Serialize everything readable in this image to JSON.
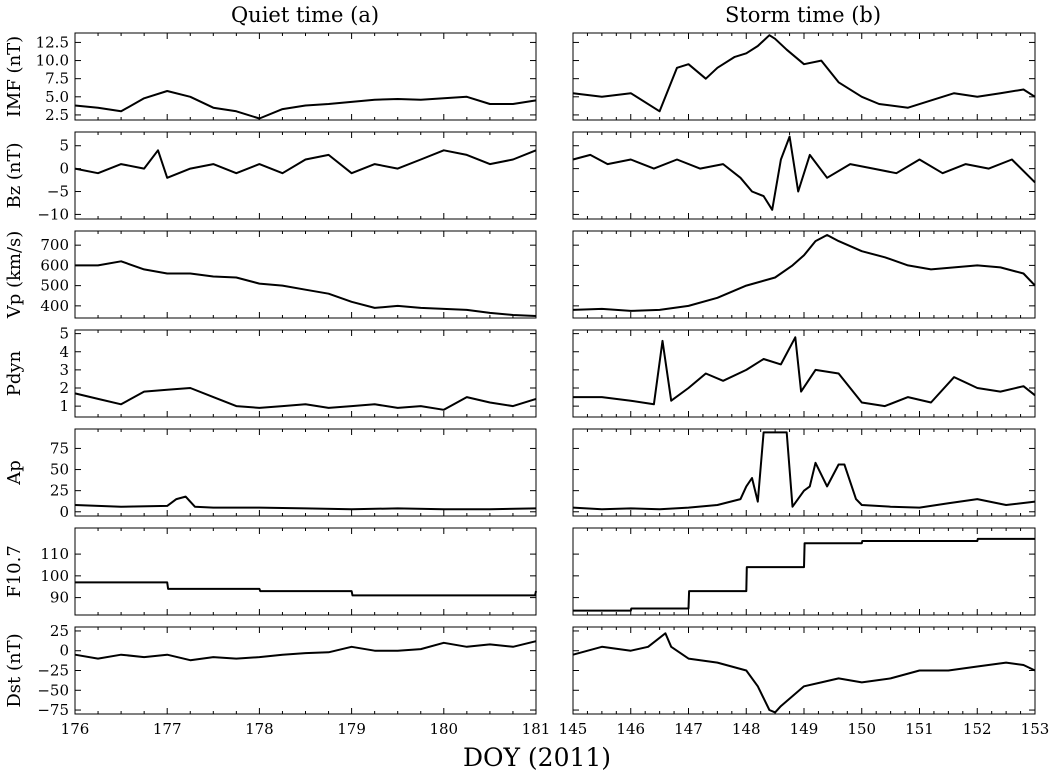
{
  "figure": {
    "xlabel": "DOY (2011)",
    "columns": [
      {
        "title": "Quiet time (a)",
        "xlim": [
          176,
          181
        ],
        "xticks": [
          176,
          177,
          178,
          179,
          180,
          181
        ]
      },
      {
        "title": "Storm time (b)",
        "xlim": [
          145,
          153
        ],
        "xticks": [
          145,
          146,
          147,
          148,
          149,
          150,
          151,
          152,
          153
        ]
      }
    ],
    "rows": [
      {
        "ylabel": "IMF (nT)",
        "ylim": [
          1.8,
          13.8
        ],
        "yticks": [
          2.5,
          5.0,
          7.5,
          10.0,
          12.5
        ],
        "ytick_labels": [
          "2.5",
          "5.0",
          "7.5",
          "10.0",
          "12.5"
        ]
      },
      {
        "ylabel": "Bz (nT)",
        "ylim": [
          -11,
          8
        ],
        "yticks": [
          -10,
          -5,
          0,
          5
        ],
        "ytick_labels": [
          "−10",
          "−5",
          "0",
          "5"
        ]
      },
      {
        "ylabel": "Vp (km/s)",
        "ylim": [
          340,
          770
        ],
        "yticks": [
          400,
          500,
          600,
          700
        ],
        "ytick_labels": [
          "400",
          "500",
          "600",
          "700"
        ]
      },
      {
        "ylabel": "Pdyn",
        "ylim": [
          0.4,
          5.2
        ],
        "yticks": [
          1,
          2,
          3,
          4,
          5
        ],
        "ytick_labels": [
          "1",
          "2",
          "3",
          "4",
          "5"
        ]
      },
      {
        "ylabel": "Ap",
        "ylim": [
          -5,
          98
        ],
        "yticks": [
          0,
          25,
          50,
          75
        ],
        "ytick_labels": [
          "0",
          "25",
          "50",
          "75"
        ]
      },
      {
        "ylabel": "F10.7",
        "ylim": [
          82,
          122
        ],
        "yticks": [
          90,
          100,
          110
        ],
        "ytick_labels": [
          "90",
          "100",
          "110"
        ]
      },
      {
        "ylabel": "Dst (nT)",
        "ylim": [
          -80,
          30
        ],
        "yticks": [
          -75,
          -50,
          -25,
          0,
          25
        ],
        "ytick_labels": [
          "−75",
          "−50",
          "−25",
          "0",
          "25"
        ]
      }
    ]
  },
  "chart_data": [
    {
      "type": "line",
      "panel": "IMF quiet",
      "ylabel": "IMF (nT)",
      "xlabel": "DOY (2011)",
      "x": [
        176.0,
        176.25,
        176.5,
        176.75,
        177.0,
        177.25,
        177.5,
        177.75,
        178.0,
        178.25,
        178.5,
        178.75,
        179.0,
        179.25,
        179.5,
        179.75,
        180.0,
        180.25,
        180.5,
        180.75,
        181.0
      ],
      "y": [
        3.8,
        3.5,
        3.0,
        4.8,
        5.8,
        5.0,
        3.5,
        3.0,
        2.0,
        3.3,
        3.8,
        4.0,
        4.3,
        4.6,
        4.7,
        4.6,
        4.8,
        5.0,
        4.0,
        4.0,
        4.5
      ]
    },
    {
      "type": "line",
      "panel": "IMF storm",
      "ylabel": "IMF (nT)",
      "xlabel": "DOY (2011)",
      "x": [
        145.0,
        145.5,
        146.0,
        146.5,
        146.6,
        146.8,
        147.0,
        147.3,
        147.5,
        147.8,
        148.0,
        148.2,
        148.4,
        148.5,
        148.7,
        149.0,
        149.3,
        149.6,
        150.0,
        150.3,
        150.8,
        151.2,
        151.6,
        152.0,
        152.4,
        152.8,
        153.0
      ],
      "y": [
        5.5,
        5.0,
        5.5,
        3.0,
        5.0,
        9.0,
        9.5,
        7.5,
        9.0,
        10.5,
        11.0,
        12.0,
        13.5,
        13.0,
        11.5,
        9.5,
        10.0,
        7.0,
        5.0,
        4.0,
        3.5,
        4.5,
        5.5,
        5.0,
        5.5,
        6.0,
        5.0
      ]
    },
    {
      "type": "line",
      "panel": "Bz quiet",
      "ylabel": "Bz (nT)",
      "xlabel": "DOY (2011)",
      "x": [
        176.0,
        176.25,
        176.5,
        176.75,
        176.9,
        177.0,
        177.25,
        177.5,
        177.75,
        178.0,
        178.25,
        178.5,
        178.75,
        179.0,
        179.25,
        179.5,
        179.75,
        180.0,
        180.25,
        180.5,
        180.75,
        181.0
      ],
      "y": [
        0,
        -1,
        1,
        0,
        4,
        -2,
        0,
        1,
        -1,
        1,
        -1,
        2,
        3,
        -1,
        1,
        0,
        2,
        4,
        3,
        1,
        2,
        4
      ]
    },
    {
      "type": "line",
      "panel": "Bz storm",
      "ylabel": "Bz (nT)",
      "xlabel": "DOY (2011)",
      "x": [
        145.0,
        145.3,
        145.6,
        146.0,
        146.4,
        146.8,
        147.2,
        147.6,
        147.9,
        148.1,
        148.3,
        148.45,
        148.6,
        148.75,
        148.9,
        149.1,
        149.4,
        149.8,
        150.2,
        150.6,
        151.0,
        151.4,
        151.8,
        152.2,
        152.6,
        153.0
      ],
      "y": [
        2,
        3,
        1,
        2,
        0,
        2,
        0,
        1,
        -2,
        -5,
        -6,
        -9,
        2,
        7,
        -5,
        3,
        -2,
        1,
        0,
        -1,
        2,
        -1,
        1,
        0,
        2,
        -3
      ]
    },
    {
      "type": "line",
      "panel": "Vp quiet",
      "ylabel": "Vp (km/s)",
      "xlabel": "DOY (2011)",
      "x": [
        176.0,
        176.25,
        176.5,
        176.75,
        177.0,
        177.25,
        177.5,
        177.75,
        178.0,
        178.25,
        178.5,
        178.75,
        179.0,
        179.25,
        179.5,
        179.75,
        180.0,
        180.25,
        180.5,
        180.75,
        181.0
      ],
      "y": [
        600,
        600,
        620,
        580,
        560,
        560,
        545,
        540,
        510,
        500,
        480,
        460,
        420,
        390,
        400,
        390,
        385,
        380,
        365,
        355,
        350
      ]
    },
    {
      "type": "line",
      "panel": "Vp storm",
      "ylabel": "Vp (km/s)",
      "xlabel": "DOY (2011)",
      "x": [
        145.0,
        145.5,
        146.0,
        146.5,
        147.0,
        147.5,
        148.0,
        148.5,
        148.8,
        149.0,
        149.2,
        149.4,
        149.6,
        150.0,
        150.4,
        150.8,
        151.2,
        151.6,
        152.0,
        152.4,
        152.8,
        153.0
      ],
      "y": [
        380,
        385,
        375,
        380,
        400,
        440,
        500,
        540,
        600,
        650,
        720,
        750,
        720,
        670,
        640,
        600,
        580,
        590,
        600,
        590,
        560,
        500
      ]
    },
    {
      "type": "line",
      "panel": "Pdyn quiet",
      "ylabel": "Pdyn",
      "xlabel": "DOY (2011)",
      "x": [
        176.0,
        176.25,
        176.5,
        176.75,
        177.0,
        177.25,
        177.5,
        177.75,
        178.0,
        178.25,
        178.5,
        178.75,
        179.0,
        179.25,
        179.5,
        179.75,
        180.0,
        180.25,
        180.5,
        180.75,
        181.0
      ],
      "y": [
        1.7,
        1.4,
        1.1,
        1.8,
        1.9,
        2.0,
        1.5,
        1.0,
        0.9,
        1.0,
        1.1,
        0.9,
        1.0,
        1.1,
        0.9,
        1.0,
        0.8,
        1.5,
        1.2,
        1.0,
        1.4
      ]
    },
    {
      "type": "line",
      "panel": "Pdyn storm",
      "ylabel": "Pdyn",
      "xlabel": "DOY (2011)",
      "x": [
        145.0,
        145.5,
        146.0,
        146.4,
        146.55,
        146.7,
        147.0,
        147.3,
        147.6,
        148.0,
        148.3,
        148.6,
        148.85,
        148.95,
        149.2,
        149.6,
        150.0,
        150.4,
        150.8,
        151.2,
        151.6,
        152.0,
        152.4,
        152.8,
        153.0
      ],
      "y": [
        1.5,
        1.5,
        1.3,
        1.1,
        4.6,
        1.3,
        2.0,
        2.8,
        2.4,
        3.0,
        3.6,
        3.3,
        4.8,
        1.8,
        3.0,
        2.8,
        1.2,
        1.0,
        1.5,
        1.2,
        2.6,
        2.0,
        1.8,
        2.1,
        1.6
      ]
    },
    {
      "type": "line",
      "panel": "Ap quiet",
      "ylabel": "Ap",
      "xlabel": "DOY (2011)",
      "x": [
        176.0,
        176.5,
        177.0,
        177.1,
        177.2,
        177.3,
        177.5,
        178.0,
        178.5,
        179.0,
        179.5,
        180.0,
        180.5,
        181.0
      ],
      "y": [
        8,
        6,
        7,
        15,
        18,
        6,
        5,
        5,
        4,
        3,
        4,
        3,
        3,
        4
      ]
    },
    {
      "type": "line",
      "panel": "Ap storm",
      "ylabel": "Ap",
      "xlabel": "DOY (2011)",
      "x": [
        145.0,
        145.5,
        146.0,
        146.5,
        147.0,
        147.5,
        147.9,
        148.0,
        148.1,
        148.2,
        148.3,
        148.5,
        148.7,
        148.8,
        149.0,
        149.1,
        149.2,
        149.4,
        149.6,
        149.7,
        149.9,
        150.0,
        150.5,
        151.0,
        151.5,
        152.0,
        152.5,
        153.0
      ],
      "y": [
        5,
        3,
        4,
        3,
        5,
        8,
        15,
        30,
        40,
        12,
        94,
        94,
        94,
        6,
        25,
        30,
        58,
        30,
        56,
        56,
        15,
        8,
        6,
        5,
        10,
        15,
        8,
        12
      ]
    },
    {
      "type": "line",
      "panel": "F10.7 quiet",
      "ylabel": "F10.7",
      "xlabel": "DOY (2011)",
      "x": [
        176.0,
        177.0,
        177.01,
        178.0,
        178.01,
        179.0,
        179.01,
        180.99,
        181.0
      ],
      "y": [
        97,
        97,
        94,
        94,
        93,
        93,
        91,
        91,
        93
      ]
    },
    {
      "type": "line",
      "panel": "F10.7 storm",
      "ylabel": "F10.7",
      "xlabel": "DOY (2011)",
      "x": [
        145.0,
        146.0,
        146.01,
        147.0,
        147.01,
        148.0,
        148.01,
        149.0,
        149.01,
        150.0,
        150.01,
        152.0,
        152.01,
        153.0
      ],
      "y": [
        84,
        84,
        85,
        85,
        93,
        93,
        104,
        104,
        115,
        115,
        116,
        116,
        117,
        117
      ]
    },
    {
      "type": "line",
      "panel": "Dst quiet",
      "ylabel": "Dst (nT)",
      "xlabel": "DOY (2011)",
      "x": [
        176.0,
        176.25,
        176.5,
        176.75,
        177.0,
        177.25,
        177.5,
        177.75,
        178.0,
        178.25,
        178.5,
        178.75,
        179.0,
        179.25,
        179.5,
        179.75,
        180.0,
        180.25,
        180.5,
        180.75,
        181.0
      ],
      "y": [
        -5,
        -10,
        -5,
        -8,
        -5,
        -12,
        -8,
        -10,
        -8,
        -5,
        -3,
        -2,
        5,
        0,
        0,
        2,
        10,
        5,
        8,
        5,
        12
      ]
    },
    {
      "type": "line",
      "panel": "Dst storm",
      "ylabel": "Dst (nT)",
      "xlabel": "DOY (2011)",
      "x": [
        145.0,
        145.5,
        146.0,
        146.3,
        146.6,
        146.7,
        147.0,
        147.5,
        148.0,
        148.2,
        148.4,
        148.5,
        148.6,
        149.0,
        149.3,
        149.6,
        150.0,
        150.5,
        151.0,
        151.5,
        152.0,
        152.5,
        152.8,
        153.0
      ],
      "y": [
        -5,
        5,
        0,
        5,
        22,
        5,
        -10,
        -15,
        -25,
        -45,
        -75,
        -78,
        -70,
        -45,
        -40,
        -35,
        -40,
        -35,
        -25,
        -25,
        -20,
        -15,
        -18,
        -25
      ]
    }
  ]
}
